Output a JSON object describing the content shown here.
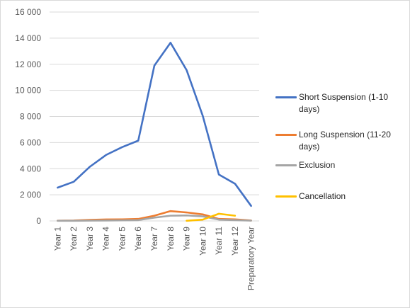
{
  "chart_data": {
    "type": "line",
    "categories": [
      "Year 1",
      "Year 2",
      "Year 3",
      "Year 4",
      "Year 5",
      "Year 6",
      "Year 7",
      "Year 8",
      "Year 9",
      "Year 10",
      "Year 11",
      "Year 12",
      "Preparatory Year"
    ],
    "ylim": [
      0,
      16000
    ],
    "yticks": [
      0,
      2000,
      4000,
      6000,
      8000,
      10000,
      12000,
      14000,
      16000
    ],
    "ytick_labels": [
      "0",
      "2 000",
      "4 000",
      "6 000",
      "8 000",
      "10 000",
      "12 000",
      "14 000",
      "16 000"
    ],
    "grid": true,
    "legend_position": "right",
    "series": [
      {
        "name": "Short Suspension (1-10 days)",
        "color": "#4472C4",
        "values": [
          2550,
          3000,
          4150,
          5050,
          5650,
          6150,
          11900,
          13650,
          11550,
          8050,
          3550,
          2850,
          1150
        ]
      },
      {
        "name": "Long Suspension (11-20 days)",
        "color": "#ED7D31",
        "values": [
          20,
          30,
          80,
          110,
          120,
          150,
          400,
          750,
          650,
          500,
          150,
          120,
          30
        ]
      },
      {
        "name": "Exclusion",
        "color": "#A5A5A5",
        "values": [
          10,
          10,
          20,
          30,
          40,
          60,
          250,
          400,
          420,
          350,
          100,
          60,
          20
        ]
      },
      {
        "name": "Cancellation",
        "color": "#FFC000",
        "values": [
          null,
          null,
          null,
          null,
          null,
          null,
          null,
          null,
          10,
          100,
          550,
          400,
          null
        ]
      }
    ]
  }
}
